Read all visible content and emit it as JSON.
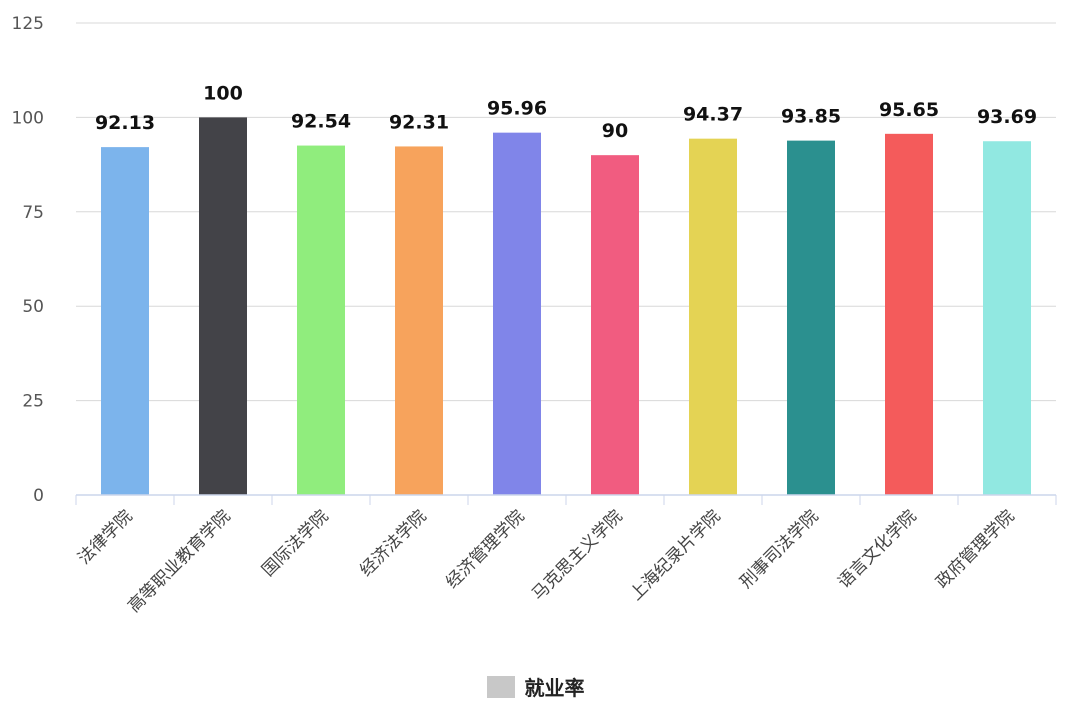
{
  "chart_data": {
    "type": "bar",
    "categories": [
      "法律学院",
      "高等职业教育学院",
      "国际法学院",
      "经济法学院",
      "经济管理学院",
      "马克思主义学院",
      "上海纪录片学院",
      "刑事司法学院",
      "语言文化学院",
      "政府管理学院"
    ],
    "series": [
      {
        "name": "就业率",
        "values": [
          92.13,
          100,
          92.54,
          92.31,
          95.96,
          90,
          94.37,
          93.85,
          95.65,
          93.69
        ],
        "data_labels": [
          "92.13",
          "100",
          "92.54",
          "92.31",
          "95.96",
          "90",
          "94.37",
          "93.85",
          "95.65",
          "93.69"
        ]
      }
    ],
    "colors": [
      "#7cb4ec",
      "#434348",
      "#90ed7d",
      "#f7a35c",
      "#8085e9",
      "#f15c80",
      "#e4d354",
      "#2b908f",
      "#f45b5b",
      "#91e8e1"
    ],
    "ylim": [
      0,
      125
    ],
    "yticks": [
      "0",
      "25",
      "50",
      "75",
      "100",
      "125"
    ],
    "grid": true,
    "legend_position": "bottom-center",
    "legend_swatch_color": "#c8c8c8"
  }
}
